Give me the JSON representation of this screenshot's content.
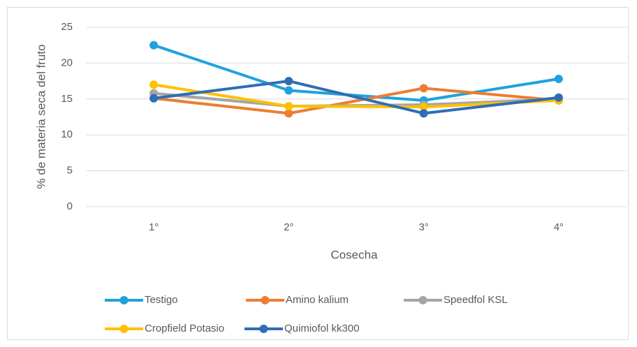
{
  "chart_data": {
    "type": "line",
    "x_label": "Cosecha",
    "y_label": "% de materia seca del fruto",
    "categories": [
      "1°",
      "2°",
      "3°",
      "4°"
    ],
    "series": [
      {
        "name": "Testigo",
        "color": "#1fa2dc",
        "values": [
          22.5,
          16.2,
          14.8,
          17.8
        ]
      },
      {
        "name": "Amino kalium",
        "color": "#ed7d31",
        "values": [
          15.1,
          13.0,
          16.5,
          14.8
        ]
      },
      {
        "name": "Speedfol KSL",
        "color": "#a5a5a5",
        "values": [
          15.8,
          14.0,
          14.2,
          15.0
        ]
      },
      {
        "name": "Cropfield Potasio",
        "color": "#ffc000",
        "values": [
          17.0,
          14.0,
          13.9,
          14.8
        ]
      },
      {
        "name": "Quimiofol kk300",
        "color": "#2f6db5",
        "values": [
          15.1,
          17.5,
          13.0,
          15.2
        ]
      }
    ],
    "ylim": [
      0,
      25
    ],
    "yticks": [
      0,
      5,
      10,
      15,
      20,
      25
    ],
    "grid": true,
    "legend": "bottom"
  }
}
